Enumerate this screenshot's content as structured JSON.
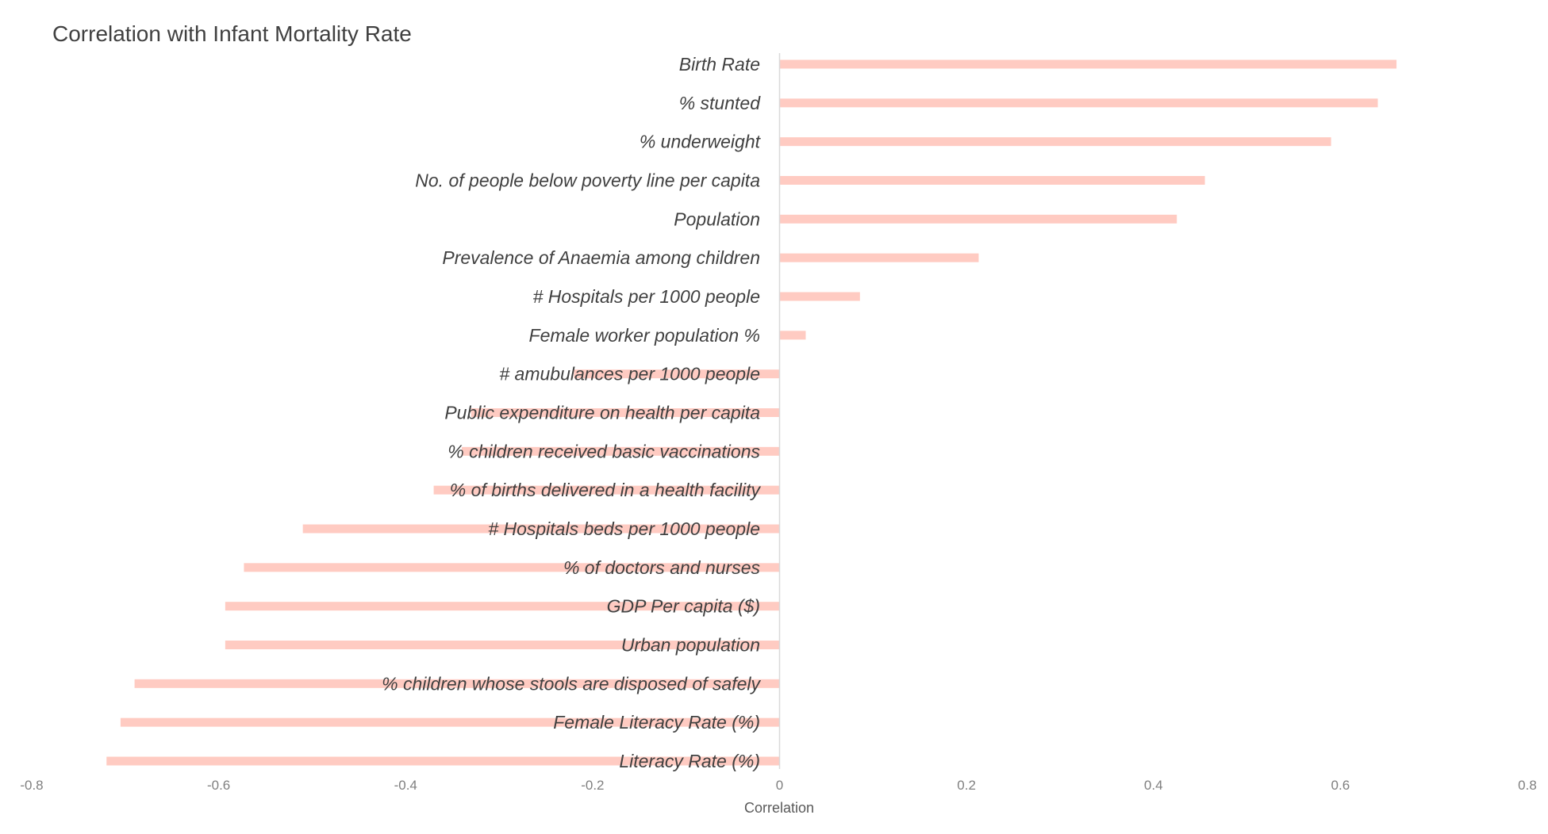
{
  "chart_data": {
    "type": "bar",
    "orientation": "horizontal",
    "title": "Correlation with Infant Mortality Rate",
    "xlabel": "Correlation",
    "ylabel": "",
    "xlim": [
      -0.8,
      0.8
    ],
    "x_ticks": [
      "-0.8",
      "-0.6",
      "-0.4",
      "-0.2",
      "0",
      "0.2",
      "0.4",
      "0.6",
      "0.8"
    ],
    "grid": false,
    "bar_color": "#ffcbc2",
    "categories": [
      "Birth Rate",
      "% stunted",
      "% underweight",
      "No. of people below poverty line per capita",
      "Population",
      "Prevalence of Anaemia among children",
      "# Hospitals per 1000 people",
      "Female worker population %",
      "# amubulances per 1000 people",
      "Public expenditure on health per capita",
      "% children received basic vaccinations",
      "% of births delivered in a health facility",
      "# Hospitals beds per 1000 people",
      "% of doctors and nurses",
      "GDP Per capita ($)",
      "Urban population",
      "% children whose stools are disposed of safely",
      "Female Literacy Rate (%)",
      "Literacy Rate (%)"
    ],
    "values": [
      0.66,
      0.64,
      0.59,
      0.455,
      0.425,
      0.213,
      0.086,
      0.028,
      -0.22,
      -0.33,
      -0.34,
      -0.37,
      -0.51,
      -0.573,
      -0.593,
      -0.593,
      -0.69,
      -0.705,
      -0.72
    ]
  }
}
